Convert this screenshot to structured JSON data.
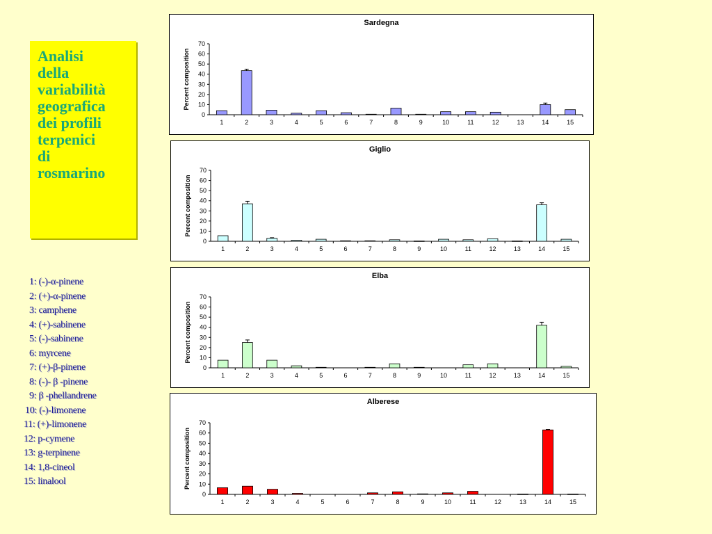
{
  "title": {
    "lines": [
      "Analisi",
      "della",
      "variabilità",
      "geografica",
      "dei profili",
      "terpenici",
      "di",
      "rosmarino"
    ]
  },
  "legend": {
    "items": [
      "1: (-)-α-pinene",
      "2: (+)-α-pinene",
      "3: camphene",
      "4: (+)-sabinene",
      "5: (-)-sabinene",
      "6: myrcene",
      "7: (+)-β-pinene",
      "8: (-)- β -pinene",
      "9: β -phellandrene",
      "10: (-)-limonene",
      "11: (+)-limonene",
      "12: p-cymene",
      "13: g-terpinene",
      "14: 1,8-cineol",
      "15: linalool"
    ]
  },
  "chart_data": [
    {
      "type": "bar",
      "title": "Sardegna",
      "ylabel": "Percent composition",
      "xlabel": "",
      "ylim": [
        0,
        70
      ],
      "yticks": [
        "0",
        "10",
        "20",
        "30",
        "40",
        "50",
        "60",
        "70"
      ],
      "categories": [
        "1",
        "2",
        "3",
        "4",
        "5",
        "6",
        "7",
        "8",
        "9",
        "10",
        "11",
        "12",
        "13",
        "14",
        "15"
      ],
      "values": [
        4,
        43.5,
        4.5,
        1.5,
        4,
        2,
        0.5,
        6.5,
        0.5,
        3,
        3,
        2.5,
        0,
        10,
        5
      ],
      "errors": [
        0,
        1.5,
        0,
        0,
        0,
        0,
        0,
        0,
        0,
        0,
        0,
        0,
        0,
        1.5,
        0
      ],
      "color": "#9999ff"
    },
    {
      "type": "bar",
      "title": "Giglio",
      "ylabel": "Percent composition",
      "xlabel": "",
      "ylim": [
        0,
        70
      ],
      "yticks": [
        "0",
        "10",
        "20",
        "30",
        "40",
        "50",
        "60",
        "70"
      ],
      "categories": [
        "1",
        "2",
        "3",
        "4",
        "5",
        "6",
        "7",
        "8",
        "9",
        "10",
        "11",
        "12",
        "13",
        "14",
        "15"
      ],
      "values": [
        5.5,
        37,
        3,
        1,
        2,
        0.5,
        0.5,
        1.5,
        0.3,
        2,
        1.5,
        2.5,
        0.3,
        36,
        2
      ],
      "errors": [
        0,
        2.5,
        0.5,
        0,
        0,
        0,
        0,
        0,
        0,
        0,
        0,
        0,
        0,
        2,
        0
      ],
      "color": "#ccffff"
    },
    {
      "type": "bar",
      "title": "Elba",
      "ylabel": "Percent composition",
      "xlabel": "",
      "ylim": [
        0,
        70
      ],
      "yticks": [
        "0",
        "10",
        "20",
        "30",
        "40",
        "50",
        "60",
        "70"
      ],
      "categories": [
        "1",
        "2",
        "3",
        "4",
        "5",
        "6",
        "7",
        "8",
        "9",
        "10",
        "11",
        "12",
        "13",
        "14",
        "15"
      ],
      "values": [
        7.5,
        25,
        7.5,
        2,
        0.5,
        0,
        0.5,
        4,
        0.5,
        0,
        3,
        4,
        0,
        42,
        1.5
      ],
      "errors": [
        0,
        2.5,
        0,
        0,
        0,
        0,
        0,
        0,
        0,
        0,
        0,
        0,
        0,
        3,
        0
      ],
      "color": "#ccffcc"
    },
    {
      "type": "bar",
      "title": "Alberese",
      "ylabel": "Percent composition",
      "xlabel": "",
      "ylim": [
        0,
        70
      ],
      "yticks": [
        "0",
        "10",
        "20",
        "30",
        "40",
        "50",
        "60",
        "70"
      ],
      "categories": [
        "1",
        "2",
        "3",
        "4",
        "5",
        "6",
        "7",
        "8",
        "9",
        "10",
        "11",
        "12",
        "13",
        "14",
        "15"
      ],
      "values": [
        6.5,
        8,
        5,
        1,
        0,
        0,
        1.5,
        2.5,
        0.5,
        1.5,
        3,
        0,
        0.3,
        63,
        0.3
      ],
      "errors": [
        0,
        0,
        0,
        0,
        0,
        0,
        0,
        0,
        0,
        0,
        0,
        0,
        0,
        0.5,
        0
      ],
      "color": "#ff0000"
    }
  ]
}
